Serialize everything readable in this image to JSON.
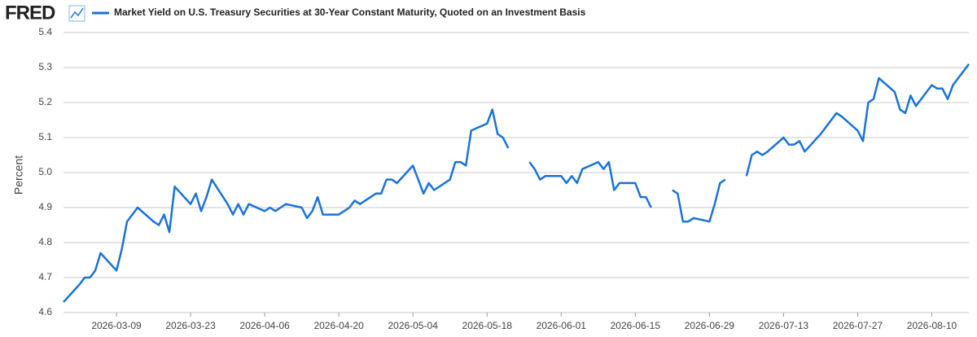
{
  "logo": "FRED",
  "chart_data": {
    "type": "line",
    "y_label": "Percent",
    "x": [
      "2026-02-27",
      "2026-03-02",
      "2026-03-03",
      "2026-03-04",
      "2026-03-05",
      "2026-03-06",
      "2026-03-09",
      "2026-03-10",
      "2026-03-11",
      "2026-03-12",
      "2026-03-13",
      "2026-03-16",
      "2026-03-17",
      "2026-03-18",
      "2026-03-19",
      "2026-03-20",
      "2026-03-23",
      "2026-03-24",
      "2026-03-25",
      "2026-03-26",
      "2026-03-27",
      "2026-03-30",
      "2026-03-31",
      "2026-04-01",
      "2026-04-02",
      "2026-04-03",
      "2026-04-06",
      "2026-04-07",
      "2026-04-08",
      "2026-04-09",
      "2026-04-10",
      "2026-04-13",
      "2026-04-14",
      "2026-04-15",
      "2026-04-16",
      "2026-04-17",
      "2026-04-20",
      "2026-04-21",
      "2026-04-22",
      "2026-04-23",
      "2026-04-24",
      "2026-04-27",
      "2026-04-28",
      "2026-04-29",
      "2026-04-30",
      "2026-05-01",
      "2026-05-04",
      "2026-05-05",
      "2026-05-06",
      "2026-05-07",
      "2026-05-08",
      "2026-05-11",
      "2026-05-12",
      "2026-05-13",
      "2026-05-14",
      "2026-05-15",
      "2026-05-18",
      "2026-05-19",
      "2026-05-20",
      "2026-05-21",
      "2026-05-22",
      "2026-05-25",
      "2026-05-26",
      "2026-05-27",
      "2026-05-28",
      "2026-05-29",
      "2026-06-01",
      "2026-06-02",
      "2026-06-03",
      "2026-06-04",
      "2026-06-05",
      "2026-06-08",
      "2026-06-09",
      "2026-06-10",
      "2026-06-11",
      "2026-06-12",
      "2026-06-15",
      "2026-06-16",
      "2026-06-17",
      "2026-06-18",
      "2026-06-19",
      "2026-06-22",
      "2026-06-23",
      "2026-06-24",
      "2026-06-25",
      "2026-06-26",
      "2026-06-29",
      "2026-06-30",
      "2026-07-01",
      "2026-07-02",
      "2026-07-03",
      "2026-07-06",
      "2026-07-07",
      "2026-07-08",
      "2026-07-09",
      "2026-07-10",
      "2026-07-13",
      "2026-07-14",
      "2026-07-15",
      "2026-07-16",
      "2026-07-17",
      "2026-07-20",
      "2026-07-21",
      "2026-07-22",
      "2026-07-23",
      "2026-07-24",
      "2026-07-27",
      "2026-07-28",
      "2026-07-29",
      "2026-07-30",
      "2026-07-31",
      "2026-08-03",
      "2026-08-04",
      "2026-08-05",
      "2026-08-06",
      "2026-08-07",
      "2026-08-10",
      "2026-08-11",
      "2026-08-12",
      "2026-08-13",
      "2026-08-14",
      "2026-08-17"
    ],
    "series": [
      {
        "name": "Market Yield on U.S. Treasury Securities at 30-Year Constant Maturity, Quoted on an Investment Basis",
        "color": "#1a73d6",
        "values": [
          4.63,
          4.68,
          4.7,
          4.7,
          4.72,
          4.77,
          4.72,
          4.78,
          4.86,
          4.88,
          4.9,
          4.86,
          4.85,
          4.88,
          4.83,
          4.96,
          4.91,
          4.94,
          4.89,
          4.93,
          4.98,
          4.91,
          4.88,
          4.91,
          4.88,
          4.91,
          4.89,
          4.9,
          4.89,
          4.9,
          4.91,
          4.9,
          4.87,
          4.89,
          4.93,
          4.88,
          4.88,
          4.89,
          4.9,
          4.92,
          4.91,
          4.94,
          4.94,
          4.98,
          4.98,
          4.97,
          5.02,
          4.98,
          4.94,
          4.97,
          4.95,
          4.98,
          5.03,
          5.03,
          5.02,
          5.12,
          5.14,
          5.18,
          5.11,
          5.1,
          5.07,
          null,
          5.03,
          5.01,
          4.98,
          4.99,
          4.99,
          4.97,
          4.99,
          4.97,
          5.01,
          5.03,
          5.01,
          5.03,
          4.95,
          4.97,
          4.97,
          4.93,
          4.93,
          4.9,
          null,
          4.95,
          4.94,
          4.86,
          4.86,
          4.87,
          4.86,
          4.91,
          4.97,
          4.98,
          null,
          4.99,
          5.05,
          5.06,
          5.05,
          5.06,
          5.1,
          5.08,
          5.08,
          5.09,
          5.06,
          5.11,
          5.13,
          5.15,
          5.17,
          5.16,
          5.12,
          5.09,
          5.2,
          5.21,
          5.27,
          5.23,
          5.18,
          5.17,
          5.22,
          5.19,
          5.25,
          5.24,
          5.24,
          5.21,
          5.25,
          5.31
        ]
      }
    ],
    "xlim": [
      "2026-02-27",
      "2026-08-17"
    ],
    "xticks": [
      "2026-03-09",
      "2026-03-23",
      "2026-04-06",
      "2026-04-20",
      "2026-05-04",
      "2026-05-18",
      "2026-06-01",
      "2026-06-15",
      "2026-06-29",
      "2026-07-13",
      "2026-07-27",
      "2026-08-10"
    ],
    "ylim": [
      4.6,
      5.4
    ],
    "yticks": [
      4.6,
      4.7,
      4.8,
      4.9,
      {
        "value": 5,
        "label": "5.0"
      },
      5.1,
      5.2,
      5.3,
      5.4
    ],
    "grid": true
  }
}
